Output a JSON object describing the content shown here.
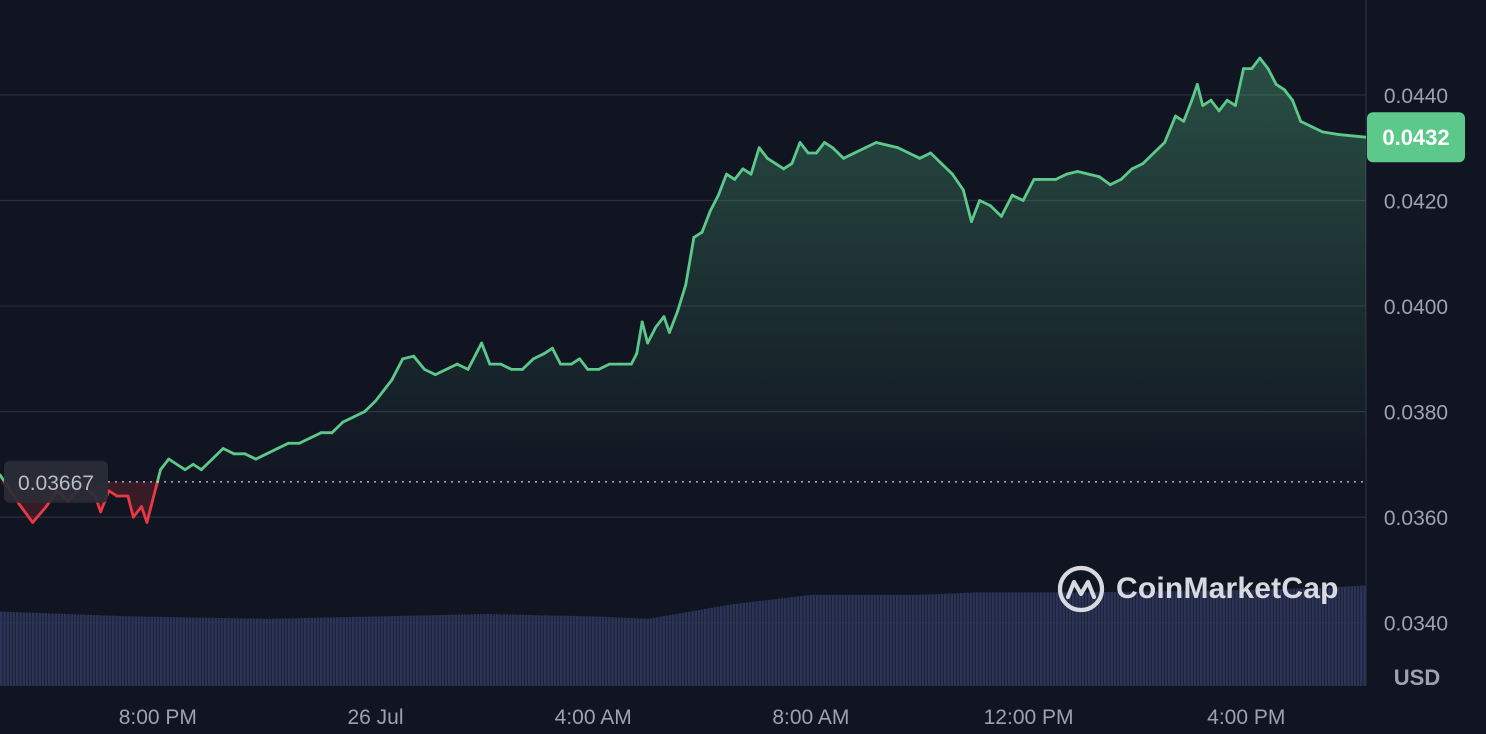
{
  "chart_data": {
    "type": "area",
    "currency_label": "USD",
    "baseline_value": 0.03667,
    "baseline_label": "0.03667",
    "current_value": 0.0432,
    "current_label": "0.0432",
    "ylim": [
      0.0328,
      0.0458
    ],
    "y_ticks": [
      0.034,
      0.036,
      0.038,
      0.04,
      0.042,
      0.044
    ],
    "y_tick_labels": [
      "0.0340",
      "0.0360",
      "0.0380",
      "0.0400",
      "0.0420",
      "0.0440"
    ],
    "x_ticks": [
      {
        "t": 2.0,
        "label": "8:00 PM"
      },
      {
        "t": 6.0,
        "label": "26 Jul"
      },
      {
        "t": 10.0,
        "label": "4:00 AM"
      },
      {
        "t": 14.0,
        "label": "8:00 AM"
      },
      {
        "t": 18.0,
        "label": "12:00 PM"
      },
      {
        "t": 22.0,
        "label": "4:00 PM"
      }
    ],
    "time_range_hours": [
      -0.9,
      24.2
    ],
    "grid": true,
    "up_color": "#5cc98b",
    "down_color": "#ea3943",
    "volume_color": "#2b3356",
    "price_series": [
      [
        -0.9,
        0.0368
      ],
      [
        -0.55,
        0.03625
      ],
      [
        -0.3,
        0.0359
      ],
      [
        -0.05,
        0.0362
      ],
      [
        0.15,
        0.0365
      ],
      [
        0.35,
        0.0363
      ],
      [
        0.6,
        0.0366
      ],
      [
        0.85,
        0.0364
      ],
      [
        0.95,
        0.0361
      ],
      [
        1.1,
        0.0365
      ],
      [
        1.25,
        0.0364
      ],
      [
        1.45,
        0.0364
      ],
      [
        1.55,
        0.036
      ],
      [
        1.7,
        0.0362
      ],
      [
        1.8,
        0.0359
      ],
      [
        1.9,
        0.0363
      ],
      [
        2.05,
        0.0369
      ],
      [
        2.2,
        0.0371
      ],
      [
        2.35,
        0.037
      ],
      [
        2.5,
        0.0369
      ],
      [
        2.65,
        0.037
      ],
      [
        2.8,
        0.0369
      ],
      [
        3.0,
        0.0371
      ],
      [
        3.2,
        0.0373
      ],
      [
        3.4,
        0.0372
      ],
      [
        3.6,
        0.0372
      ],
      [
        3.8,
        0.0371
      ],
      [
        4.0,
        0.0372
      ],
      [
        4.2,
        0.0373
      ],
      [
        4.4,
        0.0374
      ],
      [
        4.6,
        0.0374
      ],
      [
        4.8,
        0.0375
      ],
      [
        5.0,
        0.0376
      ],
      [
        5.2,
        0.0376
      ],
      [
        5.4,
        0.0378
      ],
      [
        5.6,
        0.0379
      ],
      [
        5.8,
        0.038
      ],
      [
        6.0,
        0.0382
      ],
      [
        6.15,
        0.0384
      ],
      [
        6.3,
        0.0386
      ],
      [
        6.5,
        0.039
      ],
      [
        6.7,
        0.03905
      ],
      [
        6.9,
        0.0388
      ],
      [
        7.1,
        0.0387
      ],
      [
        7.3,
        0.0388
      ],
      [
        7.5,
        0.0389
      ],
      [
        7.7,
        0.0388
      ],
      [
        7.85,
        0.0391
      ],
      [
        7.95,
        0.0393
      ],
      [
        8.1,
        0.0389
      ],
      [
        8.3,
        0.0389
      ],
      [
        8.5,
        0.0388
      ],
      [
        8.7,
        0.0388
      ],
      [
        8.9,
        0.039
      ],
      [
        9.1,
        0.0391
      ],
      [
        9.25,
        0.0392
      ],
      [
        9.4,
        0.0389
      ],
      [
        9.6,
        0.0389
      ],
      [
        9.75,
        0.039
      ],
      [
        9.9,
        0.0388
      ],
      [
        10.1,
        0.0388
      ],
      [
        10.3,
        0.0389
      ],
      [
        10.5,
        0.0389
      ],
      [
        10.7,
        0.0389
      ],
      [
        10.8,
        0.0391
      ],
      [
        10.9,
        0.0397
      ],
      [
        11.0,
        0.0393
      ],
      [
        11.15,
        0.0396
      ],
      [
        11.3,
        0.0398
      ],
      [
        11.4,
        0.0395
      ],
      [
        11.55,
        0.0399
      ],
      [
        11.7,
        0.0404
      ],
      [
        11.85,
        0.0413
      ],
      [
        12.0,
        0.0414
      ],
      [
        12.15,
        0.0418
      ],
      [
        12.3,
        0.0421
      ],
      [
        12.45,
        0.0425
      ],
      [
        12.6,
        0.0424
      ],
      [
        12.75,
        0.0426
      ],
      [
        12.9,
        0.0425
      ],
      [
        13.05,
        0.043
      ],
      [
        13.2,
        0.0428
      ],
      [
        13.35,
        0.0427
      ],
      [
        13.5,
        0.0426
      ],
      [
        13.65,
        0.0427
      ],
      [
        13.8,
        0.0431
      ],
      [
        13.95,
        0.0429
      ],
      [
        14.1,
        0.0429
      ],
      [
        14.25,
        0.0431
      ],
      [
        14.4,
        0.043
      ],
      [
        14.6,
        0.0428
      ],
      [
        14.8,
        0.0429
      ],
      [
        15.0,
        0.043
      ],
      [
        15.2,
        0.0431
      ],
      [
        15.4,
        0.04305
      ],
      [
        15.6,
        0.043
      ],
      [
        15.8,
        0.0429
      ],
      [
        16.0,
        0.0428
      ],
      [
        16.2,
        0.0429
      ],
      [
        16.4,
        0.0427
      ],
      [
        16.6,
        0.0425
      ],
      [
        16.8,
        0.0422
      ],
      [
        16.95,
        0.0416
      ],
      [
        17.1,
        0.042
      ],
      [
        17.3,
        0.0419
      ],
      [
        17.5,
        0.0417
      ],
      [
        17.7,
        0.0421
      ],
      [
        17.9,
        0.042
      ],
      [
        18.1,
        0.0424
      ],
      [
        18.3,
        0.0424
      ],
      [
        18.5,
        0.0424
      ],
      [
        18.7,
        0.0425
      ],
      [
        18.9,
        0.04255
      ],
      [
        19.1,
        0.0425
      ],
      [
        19.3,
        0.04245
      ],
      [
        19.5,
        0.0423
      ],
      [
        19.7,
        0.0424
      ],
      [
        19.9,
        0.0426
      ],
      [
        20.1,
        0.0427
      ],
      [
        20.3,
        0.0429
      ],
      [
        20.5,
        0.0431
      ],
      [
        20.7,
        0.0436
      ],
      [
        20.85,
        0.0435
      ],
      [
        21.0,
        0.0439
      ],
      [
        21.1,
        0.0442
      ],
      [
        21.2,
        0.0438
      ],
      [
        21.35,
        0.0439
      ],
      [
        21.5,
        0.0437
      ],
      [
        21.65,
        0.0439
      ],
      [
        21.8,
        0.0438
      ],
      [
        21.95,
        0.0445
      ],
      [
        22.1,
        0.0445
      ],
      [
        22.25,
        0.0447
      ],
      [
        22.4,
        0.0445
      ],
      [
        22.55,
        0.0442
      ],
      [
        22.7,
        0.0441
      ],
      [
        22.85,
        0.0439
      ],
      [
        23.0,
        0.0435
      ],
      [
        23.2,
        0.0434
      ],
      [
        23.4,
        0.0433
      ],
      [
        23.7,
        0.04325
      ],
      [
        24.2,
        0.0432
      ]
    ],
    "volume_series": [
      [
        -0.9,
        0.31
      ],
      [
        1.5,
        0.29
      ],
      [
        4.0,
        0.28
      ],
      [
        6.0,
        0.29
      ],
      [
        8.0,
        0.3
      ],
      [
        10.0,
        0.29
      ],
      [
        11.0,
        0.28
      ],
      [
        11.5,
        0.3
      ],
      [
        12.5,
        0.34
      ],
      [
        14.0,
        0.38
      ],
      [
        16.0,
        0.38
      ],
      [
        17.0,
        0.39
      ],
      [
        19.0,
        0.39
      ],
      [
        22.0,
        0.4
      ],
      [
        23.5,
        0.41
      ],
      [
        24.2,
        0.42
      ]
    ]
  },
  "watermark": {
    "text": "CoinMarketCap",
    "icon": "coinmarketcap-logo-icon"
  }
}
